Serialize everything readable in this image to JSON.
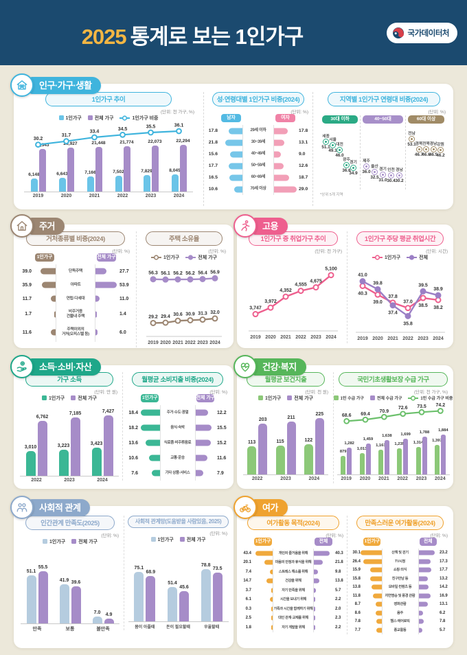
{
  "header": {
    "year": "2025",
    "title": "통계로 보는 1인가구",
    "agency": "국가데이터처",
    "bg": "#1b4a6f",
    "accent": "#f3b643"
  },
  "sections": [
    {
      "id": "pop",
      "title": "인구·가구·생활",
      "icon": "house-family-icon",
      "color": "#3fb4dd"
    },
    {
      "id": "housing",
      "title": "주거",
      "icon": "house-icon",
      "color": "#9c8672"
    },
    {
      "id": "employ",
      "title": "고용",
      "icon": "runner-icon",
      "color": "#ee5f8e"
    },
    {
      "id": "income",
      "title": "소득·소비·자산",
      "icon": "hand-coin-icon",
      "color": "#1ea789"
    },
    {
      "id": "health",
      "title": "건강·복지",
      "icon": "heart-pulse-icon",
      "color": "#56b65a"
    },
    {
      "id": "social",
      "title": "사회적 관계",
      "icon": "people-icon",
      "color": "#8da9cb"
    },
    {
      "id": "leisure",
      "title": "여가",
      "icon": "bicycle-icon",
      "color": "#efa22f"
    }
  ],
  "chart_data": [
    {
      "id": "trend",
      "type": "bar",
      "title": "1인가구 추이",
      "unit": "(단위: 천 가구, %)",
      "categories": [
        "2019",
        "2020",
        "2021",
        "2022",
        "2023",
        "2024"
      ],
      "series": [
        {
          "name": "1인가구",
          "color": "#6ac4e8",
          "values": [
            6148,
            6643,
            7166,
            7502,
            7829,
            8045
          ]
        },
        {
          "name": "전체 가구",
          "color": "#a68cc8",
          "values": [
            20343,
            20927,
            21448,
            21774,
            22073,
            22294
          ]
        }
      ],
      "line": {
        "name": "1인가구 비중",
        "color": "#3fb4dd",
        "values": [
          30.2,
          31.7,
          33.4,
          34.5,
          35.5,
          36.1
        ]
      }
    },
    {
      "id": "gender_age",
      "type": "butterfly",
      "title": "성·연령대별 1인가구 비중(2024)",
      "unit": "(단위: %)",
      "categories": [
        "29세 이하",
        "30~39세",
        "40~49세",
        "50~59세",
        "60~69세",
        "70세 이상"
      ],
      "left": {
        "name": "남자",
        "color": "#76c6e9",
        "header": "#53bae3",
        "values": [
          17.8,
          21.8,
          15.6,
          17.7,
          16.5,
          10.6
        ]
      },
      "right": {
        "name": "여자",
        "color": "#f29fb7",
        "header": "#f082a6",
        "values": [
          17.8,
          13.1,
          9.0,
          12.6,
          18.7,
          29.0
        ]
      }
    },
    {
      "id": "region_age",
      "type": "dot-cascade",
      "title": "지역별 1인가구 연령대 비중(2024)",
      "unit": "(단위: %)",
      "footnote": "*상위 5개 지역",
      "groups": [
        {
          "name": "30대 이하",
          "color": "#2baa85",
          "items": [
            [
              "세종",
              51.1
            ],
            [
              "서울",
              49.1
            ],
            [
              "대전",
              46.0
            ],
            [
              "광주",
              36.6
            ],
            [
              "경기",
              34.9
            ]
          ]
        },
        {
          "name": "40~50대",
          "color": "#a78fc9",
          "items": [
            [
              "제주",
              36.0
            ],
            [
              "울산",
              32.5
            ],
            [
              "경기",
              31.0
            ],
            [
              "인천",
              30.4
            ],
            [
              "경남",
              30.2
            ]
          ]
        },
        {
          "name": "60대 이상",
          "color": "#a08b66",
          "items": [
            [
              "전남",
              53.1
            ],
            [
              "경북",
              46.7
            ],
            [
              "전북",
              46.6
            ],
            [
              "경남",
              46.5
            ],
            [
              "강원",
              46.2
            ]
          ]
        }
      ]
    },
    {
      "id": "dwelling",
      "type": "butterfly",
      "title": "거처종류별 비중(2024)",
      "unit": "(단위: %)",
      "categories": [
        "단독주택",
        "아파트",
        "연립·다세대",
        "비주거용\n건물내 주택",
        "주택이외의\n거처(오피스텔 등)"
      ],
      "left": {
        "name": "1인가구",
        "color": "#9c8672",
        "header": "#9c8672",
        "values": [
          39.0,
          35.9,
          11.7,
          1.7,
          11.6
        ]
      },
      "right": {
        "name": "전체 가구",
        "color": "#a68cc8",
        "header": "#a68cc8",
        "values": [
          27.7,
          53.9,
          11.0,
          1.4,
          6.0
        ]
      }
    },
    {
      "id": "ownership",
      "type": "line",
      "title": "주택 소유율",
      "unit": "(단위: %)",
      "x": [
        "2019",
        "2020",
        "2021",
        "2022",
        "2023",
        "2024"
      ],
      "series": [
        {
          "name": "1인가구",
          "color": "#9c8672",
          "open": true,
          "values": [
            29.2,
            29.4,
            30.6,
            30.9,
            31.3,
            32.0
          ]
        },
        {
          "name": "전체 가구",
          "color": "#a68cc8",
          "open": false,
          "values": [
            56.3,
            56.1,
            56.2,
            56.2,
            56.4,
            56.9
          ]
        }
      ]
    },
    {
      "id": "employed",
      "type": "line",
      "title": "1인가구 중 취업가구 추이",
      "unit": "(단위: 천 가구)",
      "x": [
        "2019",
        "2020",
        "2021",
        "2022",
        "2023",
        "2024"
      ],
      "series": [
        {
          "name": "취업가구",
          "color": "#ee5f8e",
          "open": true,
          "values": [
            3747,
            3972,
            4352,
            4555,
            4675,
            5100
          ]
        }
      ]
    },
    {
      "id": "workhours",
      "type": "line",
      "title": "1인가구 주당 평균 취업시간",
      "unit": "(단위: 시간)",
      "x": [
        "2019",
        "2020",
        "2021",
        "2022",
        "2023",
        "2024"
      ],
      "series": [
        {
          "name": "1인가구",
          "color": "#ee5f8e",
          "open": true,
          "values": [
            40.3,
            39.0,
            37.8,
            37.0,
            38.5,
            38.2
          ]
        },
        {
          "name": "전체",
          "color": "#9b7fc5",
          "open": false,
          "values": [
            41.0,
            39.8,
            37.4,
            35.8,
            39.5,
            38.9
          ]
        }
      ]
    },
    {
      "id": "income",
      "type": "bar",
      "title": "가구 소득",
      "unit": "(단위: 만 원)",
      "categories": [
        "2022",
        "2023",
        "2024"
      ],
      "series": [
        {
          "name": "1인가구",
          "color": "#3bb795",
          "values": [
            3010,
            3223,
            3423
          ]
        },
        {
          "name": "전체 가구",
          "color": "#a68cc8",
          "values": [
            6762,
            7185,
            7427
          ]
        }
      ]
    },
    {
      "id": "spending",
      "type": "butterfly",
      "title": "월평균 소비지출 비중(2024)",
      "unit": "(단위: %)",
      "categories": [
        "주거·수도·광열",
        "음식·숙박",
        "식료품·비주류음료",
        "교통·운송",
        "기타 상품·서비스"
      ],
      "left": {
        "name": "1인가구",
        "color": "#3bb795",
        "header": "#3bb795",
        "values": [
          18.4,
          18.2,
          13.6,
          10.6,
          7.6
        ]
      },
      "right": {
        "name": "전체 가구",
        "color": "#a68cc8",
        "header": "#a68cc8",
        "values": [
          12.2,
          15.5,
          15.2,
          11.6,
          7.9
        ]
      }
    },
    {
      "id": "healthspend",
      "type": "bar",
      "title": "월평균 보건지출",
      "unit": "(단위: 천 원)",
      "categories": [
        "2022",
        "2023",
        "2024"
      ],
      "series": [
        {
          "name": "1인가구",
          "color": "#8cc878",
          "values": [
            113,
            115,
            122
          ]
        },
        {
          "name": "전체 가구",
          "color": "#a68cc8",
          "values": [
            203,
            211,
            225
          ]
        }
      ]
    },
    {
      "id": "welfare",
      "type": "bar",
      "title": "국민기초생활보장 수급 가구",
      "unit": "(단위: 천 가구, %)",
      "categories": [
        "2019",
        "2020",
        "2021",
        "2022",
        "2023",
        "2024"
      ],
      "series": [
        {
          "name": "1인 수급 가구",
          "color": "#8cc878",
          "values": [
            879,
            1013,
            1161,
            1235,
            1314,
            1397
          ]
        },
        {
          "name": "전체 수급 가구",
          "color": "#a68cc8",
          "values": [
            1282,
            1459,
            1638,
            1699,
            1788,
            1884
          ]
        }
      ],
      "line": {
        "name": "1인 수급 가구 비중",
        "color": "#6cc06c",
        "values": [
          68.6,
          69.4,
          70.9,
          72.6,
          73.5,
          74.2
        ]
      }
    },
    {
      "id": "satisfaction",
      "type": "bar",
      "title": "인간관계 만족도(2025)",
      "unit": "(단위: %)",
      "categories": [
        "만족",
        "보통",
        "불만족"
      ],
      "series": [
        {
          "name": "1인가구",
          "color": "#b5ccdf",
          "values": [
            51.1,
            41.9,
            7.0
          ]
        },
        {
          "name": "전체 가구",
          "color": "#a68cc8",
          "values": [
            55.5,
            39.6,
            4.9
          ]
        }
      ]
    },
    {
      "id": "network",
      "type": "bar",
      "title": "사회적 관계망(도움받을 사람있음, 2025)",
      "unit": "(단위: %)",
      "categories": [
        "몸이 아플때",
        "돈이 필요할때",
        "우울할때"
      ],
      "series": [
        {
          "name": "1인가구",
          "color": "#b5ccdf",
          "values": [
            75.1,
            51.4,
            78.8
          ]
        },
        {
          "name": "전체 가구",
          "color": "#a68cc8",
          "values": [
            68.9,
            45.6,
            73.5
          ]
        }
      ]
    },
    {
      "id": "purpose",
      "type": "butterfly",
      "title": "여가활동 목적(2024)",
      "unit": "(단위: %)",
      "categories": [
        "개인의 즐거움을 위해",
        "마음의 안정과 휴식을 위해",
        "스트레스 해소를 위해",
        "건강을 위해",
        "자기 만족을 위해",
        "시간을 보내기 위해",
        "가족과 시간을 함께하기 위해",
        "대인 관계·교제를 위해",
        "자기 계발을 위해"
      ],
      "left": {
        "name": "1인가구",
        "color": "#f0a93c",
        "header": "#f0a93c",
        "values": [
          43.4,
          20.1,
          7.4,
          14.7,
          3.7,
          6.1,
          0.3,
          2.5,
          1.8
        ]
      },
      "right": {
        "name": "전체",
        "color": "#a68cc8",
        "header": "#a68cc8",
        "values": [
          40.3,
          21.8,
          9.8,
          13.8,
          5.7,
          2.2,
          2.0,
          2.3,
          2.2
        ]
      }
    },
    {
      "id": "activities",
      "type": "butterfly",
      "title": "만족스러운 여가활동(2024)",
      "unit": "(단위: %)",
      "categories": [
        "산책 및 걷기",
        "TV시청",
        "쇼핑·외식",
        "친구만남 등",
        "모바일 컨텐츠 등",
        "자연명승 및 풍경 관람",
        "영화관람",
        "음주",
        "헬스·에어로빅",
        "종교활동"
      ],
      "left": {
        "name": "1인가구",
        "color": "#f0a93c",
        "header": "#f0a93c",
        "values": [
          30.1,
          26.4,
          15.9,
          15.8,
          13.8,
          11.8,
          8.7,
          8.6,
          7.8,
          7.7
        ]
      },
      "right": {
        "name": "전체",
        "color": "#a68cc8",
        "header": "#a68cc8",
        "values": [
          23.2,
          17.3,
          17.7,
          13.2,
          14.2,
          16.9,
          13.1,
          6.2,
          7.8,
          5.7
        ]
      }
    }
  ]
}
